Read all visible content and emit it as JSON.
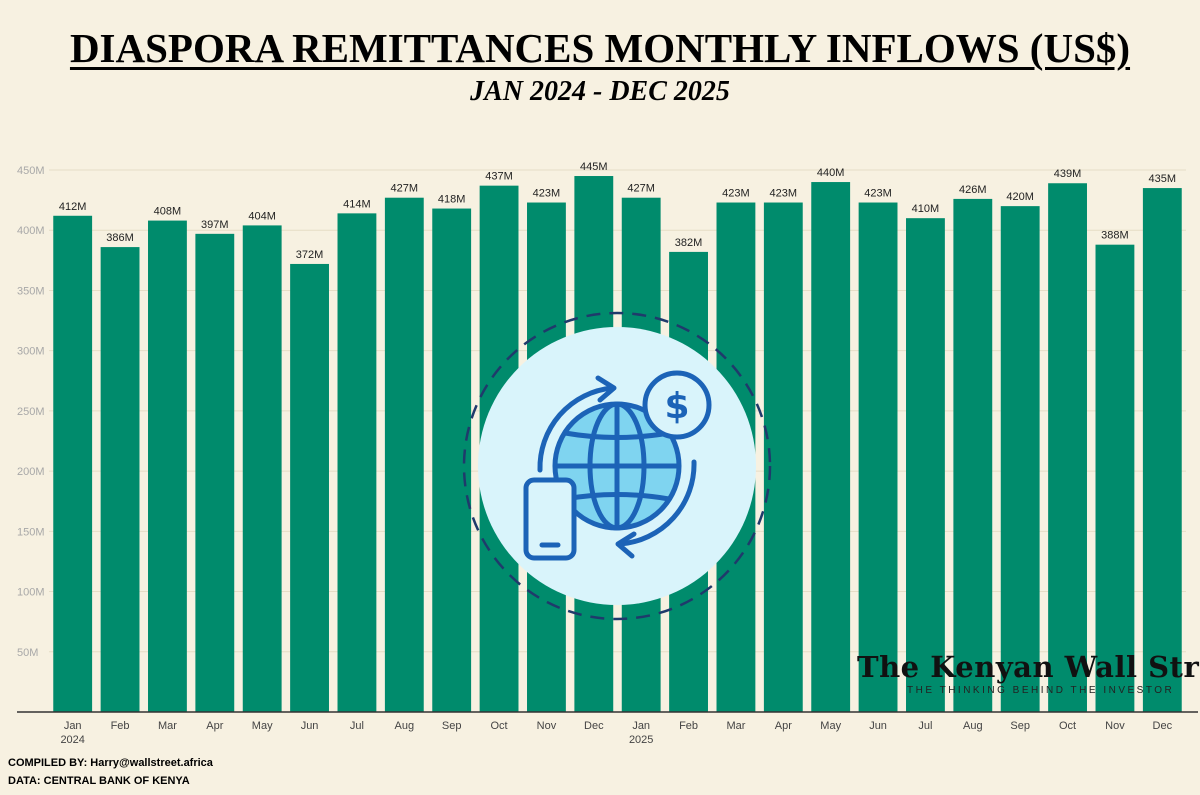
{
  "header": {
    "title": "DIASPORA REMITTANCES MONTHLY INFLOWS (US$)",
    "subtitle": "JAN 2024 - DEC 2025"
  },
  "chart_data": {
    "type": "bar",
    "categories": [
      "Jan",
      "Feb",
      "Mar",
      "Apr",
      "May",
      "Jun",
      "Jul",
      "Aug",
      "Sep",
      "Oct",
      "Nov",
      "Dec",
      "Jan",
      "Feb",
      "Mar",
      "Apr",
      "May",
      "Jun",
      "Jul",
      "Aug",
      "Sep",
      "Oct",
      "Nov",
      "Dec"
    ],
    "year_labels": [
      "2024",
      "",
      "",
      "",
      "",
      "",
      "",
      "",
      "",
      "",
      "",
      "",
      "2025",
      "",
      "",
      "",
      "",
      "",
      "",
      "",
      "",
      "",
      "",
      ""
    ],
    "values": [
      412,
      386,
      408,
      397,
      404,
      372,
      414,
      427,
      418,
      437,
      423,
      445,
      427,
      382,
      423,
      423,
      440,
      423,
      410,
      426,
      420,
      439,
      388,
      435
    ],
    "value_labels": [
      "412M",
      "386M",
      "408M",
      "397M",
      "404M",
      "372M",
      "414M",
      "427M",
      "418M",
      "437M",
      "423M",
      "445M",
      "427M",
      "382M",
      "423M",
      "423M",
      "440M",
      "423M",
      "410M",
      "426M",
      "420M",
      "439M",
      "388M",
      "435M"
    ],
    "unit": "M",
    "ylim": [
      0,
      450
    ],
    "yticks": [
      50,
      100,
      150,
      200,
      250,
      300,
      350,
      400,
      450
    ],
    "ytick_labels": [
      "50M",
      "100M",
      "150M",
      "200M",
      "250M",
      "300M",
      "350M",
      "400M",
      "450M"
    ],
    "bar_color": "#008b6c",
    "grid": true,
    "legend": false,
    "xlabel": "",
    "ylabel": ""
  },
  "illustration": {
    "icon": "global-money-transfer-icon",
    "circle_fill": "#d9f4fb",
    "ring_color": "#1f3a6b",
    "icon_color": "#1c63b7",
    "globe_fill": "#7fd4f0"
  },
  "logo": {
    "name": "The Kenyan Wall Street",
    "tagline": "THE THINKING BEHIND THE INVESTOR"
  },
  "footer": {
    "compiled": "COMPILED BY: Harry@wallstreet.africa",
    "source": "DATA: CENTRAL BANK OF KENYA"
  }
}
